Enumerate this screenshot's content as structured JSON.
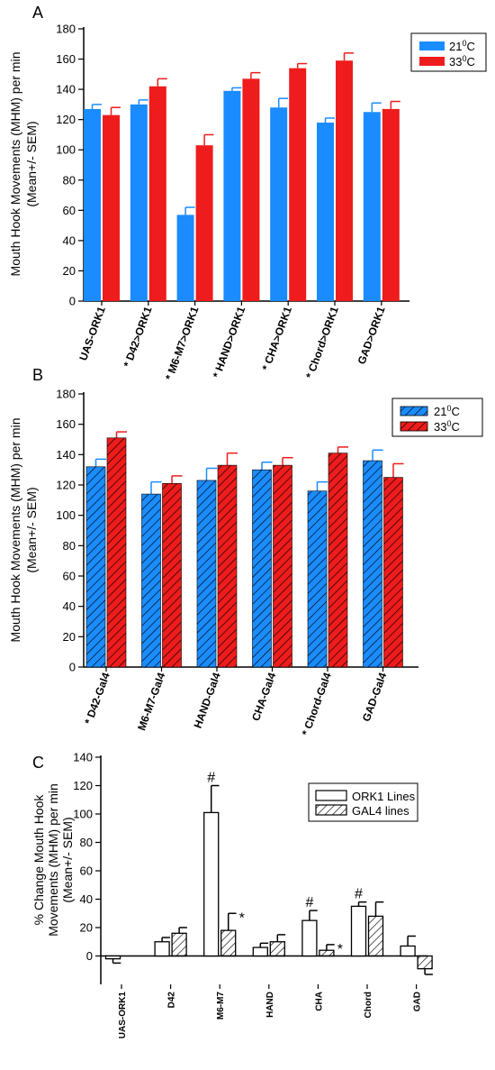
{
  "chart_data": [
    {
      "panel_label": "A",
      "type": "bar",
      "ylabel": "Mouth Hook Movements (MHM) per min",
      "ylabel2": "(Mean+/- SEM)",
      "ylim": [
        0,
        180
      ],
      "yticks": [
        0,
        20,
        40,
        60,
        80,
        100,
        120,
        140,
        160,
        180
      ],
      "categories": [
        "UAS-ORK1",
        "* D42>ORK1",
        "* M6-M7>ORK1",
        "* HAND>ORK1",
        "* CHA>ORK1",
        "* Chord>ORK1",
        "GAD>ORK1"
      ],
      "legend_position": "top-right",
      "series": [
        {
          "name": "21",
          "name_sup": "0",
          "name_suffix": "C",
          "color": "#1a8cff",
          "values": [
            127,
            130,
            57,
            139,
            128,
            118,
            125
          ],
          "errors": [
            3,
            3,
            5,
            2,
            6,
            3,
            6
          ]
        },
        {
          "name": "33",
          "name_sup": "0",
          "name_suffix": "C",
          "color": "#ee1c1c",
          "values": [
            123,
            142,
            103,
            147,
            154,
            159,
            127
          ],
          "errors": [
            5,
            5,
            7,
            4,
            3,
            5,
            5
          ]
        }
      ]
    },
    {
      "panel_label": "B",
      "type": "bar",
      "hatched": true,
      "ylabel": "Mouth Hook Movements (MHM) per min",
      "ylabel2": "(Mean+/- SEM)",
      "ylim": [
        0,
        180
      ],
      "yticks": [
        0,
        20,
        40,
        60,
        80,
        100,
        120,
        140,
        160,
        180
      ],
      "categories": [
        "* D42-Gal4",
        "M6-M7-Gal4",
        "HAND-Gal4",
        "CHA-Gal4",
        "* Chord-Gal4",
        "GAD-Gal4"
      ],
      "legend_position": "top-right",
      "series": [
        {
          "name": "21",
          "name_sup": "0",
          "name_suffix": "C",
          "color": "#1a8cff",
          "values": [
            132,
            114,
            123,
            130,
            116,
            136
          ],
          "errors": [
            5,
            8,
            8,
            5,
            6,
            7
          ]
        },
        {
          "name": "33",
          "name_sup": "0",
          "name_suffix": "C",
          "color": "#ee1c1c",
          "values": [
            151,
            121,
            133,
            133,
            141,
            125
          ],
          "errors": [
            4,
            5,
            8,
            5,
            4,
            9
          ]
        }
      ]
    },
    {
      "panel_label": "C",
      "type": "bar",
      "ylabel": "% Change Mouth Hook",
      "ylabel2": "Movements (MHM) per min",
      "ylabel3": "(Mean+/- SEM)",
      "ylim": [
        -20,
        140
      ],
      "yticks": [
        0,
        20,
        40,
        60,
        80,
        100,
        120,
        140
      ],
      "categories": [
        "UAS-ORK1",
        "D42",
        "M6-M7",
        "HAND",
        "CHA",
        "Chord",
        "GAD"
      ],
      "legend_position": "top-right",
      "series": [
        {
          "name": "ORK1 Lines",
          "pattern": "open",
          "values": [
            -2,
            10,
            101,
            6,
            25,
            35,
            7
          ],
          "errors": [
            3,
            3,
            19,
            3,
            7,
            3,
            7
          ]
        },
        {
          "name": "GAL4 lines",
          "pattern": "hatched",
          "values": [
            null,
            16,
            18,
            10,
            4,
            28,
            -9
          ],
          "errors": [
            null,
            4,
            12,
            5,
            4,
            10,
            4
          ]
        }
      ],
      "annotations": [
        {
          "text": "#",
          "category": "M6-M7",
          "series": 0
        },
        {
          "text": "*",
          "category": "M6-M7",
          "series": 1
        },
        {
          "text": "#",
          "category": "CHA",
          "series": 0
        },
        {
          "text": "*",
          "category": "CHA",
          "series": 1
        },
        {
          "text": "#",
          "category": "Chord",
          "series": 0
        }
      ]
    }
  ]
}
